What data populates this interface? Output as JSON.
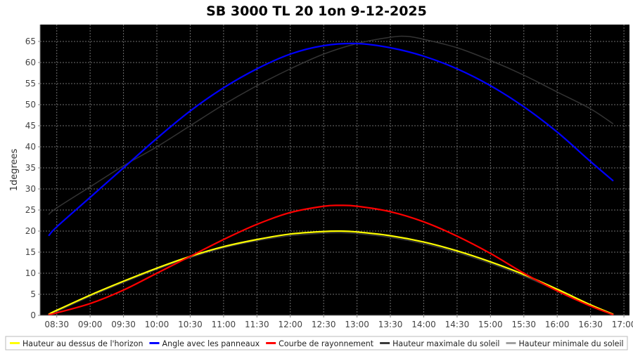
{
  "chart_data": {
    "type": "line",
    "title": "SB 3000 TL 20 1on 9-12-2025",
    "xlabel": "",
    "ylabel": "1degrees",
    "x_ticks": [
      "08:30",
      "09:00",
      "09:30",
      "10:00",
      "10:30",
      "11:00",
      "11:30",
      "12:00",
      "12:30",
      "13:00",
      "13:30",
      "14:00",
      "14:30",
      "15:00",
      "15:30",
      "16:00",
      "16:30",
      "17:00"
    ],
    "xlim": [
      "08:15",
      "17:05"
    ],
    "y_ticks": [
      0,
      5,
      10,
      15,
      20,
      25,
      30,
      35,
      40,
      45,
      50,
      55,
      60,
      65
    ],
    "ylim": [
      0,
      69
    ],
    "grid": true,
    "legend_position": "bottom",
    "background_color": "#000000",
    "grid_color": "#6e6e6e",
    "series": [
      {
        "name": "Hauteur au dessus de l'horizon",
        "color": "#ffff00",
        "x": [
          "08:23",
          "08:30",
          "09:00",
          "09:30",
          "10:00",
          "10:30",
          "11:00",
          "11:30",
          "12:00",
          "12:30",
          "12:45",
          "13:00",
          "13:30",
          "14:00",
          "14:30",
          "15:00",
          "15:30",
          "16:00",
          "16:30",
          "16:50"
        ],
        "values": [
          0.3,
          1.2,
          4.8,
          8.1,
          11.2,
          14.0,
          16.3,
          18.0,
          19.3,
          19.9,
          20.0,
          19.8,
          18.9,
          17.4,
          15.3,
          12.7,
          9.7,
          6.2,
          2.5,
          0.3
        ]
      },
      {
        "name": "Angle avec les panneaux",
        "color": "#0000ff",
        "x": [
          "08:23",
          "08:30",
          "09:00",
          "09:30",
          "10:00",
          "10:30",
          "11:00",
          "11:30",
          "12:00",
          "12:30",
          "13:00",
          "13:30",
          "14:00",
          "14:30",
          "15:00",
          "15:30",
          "16:00",
          "16:30",
          "16:50"
        ],
        "values": [
          19.0,
          21.0,
          28.0,
          35.0,
          42.0,
          48.5,
          54.0,
          58.5,
          62.0,
          64.0,
          64.5,
          63.5,
          61.5,
          58.5,
          54.5,
          49.5,
          43.5,
          36.5,
          32.0
        ]
      },
      {
        "name": "Courbe de rayonnement",
        "color": "#ff0000",
        "x": [
          "08:23",
          "08:30",
          "09:00",
          "09:30",
          "10:00",
          "10:30",
          "11:00",
          "11:30",
          "12:00",
          "12:30",
          "12:45",
          "13:00",
          "13:30",
          "14:00",
          "14:30",
          "15:00",
          "15:30",
          "16:00",
          "16:30",
          "16:50"
        ],
        "values": [
          0.2,
          0.6,
          2.8,
          6.0,
          10.0,
          14.0,
          18.0,
          21.6,
          24.4,
          25.9,
          26.1,
          25.9,
          24.6,
          22.2,
          18.8,
          14.7,
          10.0,
          5.8,
          2.2,
          0.2
        ]
      },
      {
        "name": "Hauteur maximale du soleil",
        "color": "#3a3a3a",
        "x": [
          "08:23",
          "08:30",
          "09:00",
          "09:30",
          "10:00",
          "10:30",
          "11:00",
          "11:30",
          "12:00",
          "12:30",
          "13:00",
          "13:30",
          "13:45",
          "14:00",
          "14:30",
          "15:00",
          "15:30",
          "16:00",
          "16:30",
          "16:50"
        ],
        "values": [
          24.0,
          25.5,
          30.5,
          35.5,
          40.0,
          45.0,
          50.0,
          54.5,
          58.5,
          62.0,
          64.5,
          66.0,
          66.2,
          65.5,
          63.5,
          60.5,
          57.0,
          53.0,
          49.0,
          45.5
        ]
      },
      {
        "name": "Hauteur minimale du soleil",
        "color": "#a0a0a0",
        "x": [
          "08:23",
          "08:30",
          "09:00",
          "09:30",
          "10:00",
          "10:30",
          "11:00",
          "11:30",
          "12:00",
          "12:30",
          "12:45",
          "13:00",
          "13:30",
          "14:00",
          "14:30",
          "15:00",
          "15:30",
          "16:00",
          "16:30",
          "16:50"
        ],
        "values": [
          0.1,
          0.9,
          4.5,
          7.8,
          10.9,
          13.7,
          16.0,
          17.7,
          18.9,
          19.5,
          19.6,
          19.4,
          18.5,
          17.0,
          14.9,
          12.3,
          9.3,
          5.9,
          2.3,
          0.1
        ]
      }
    ]
  }
}
